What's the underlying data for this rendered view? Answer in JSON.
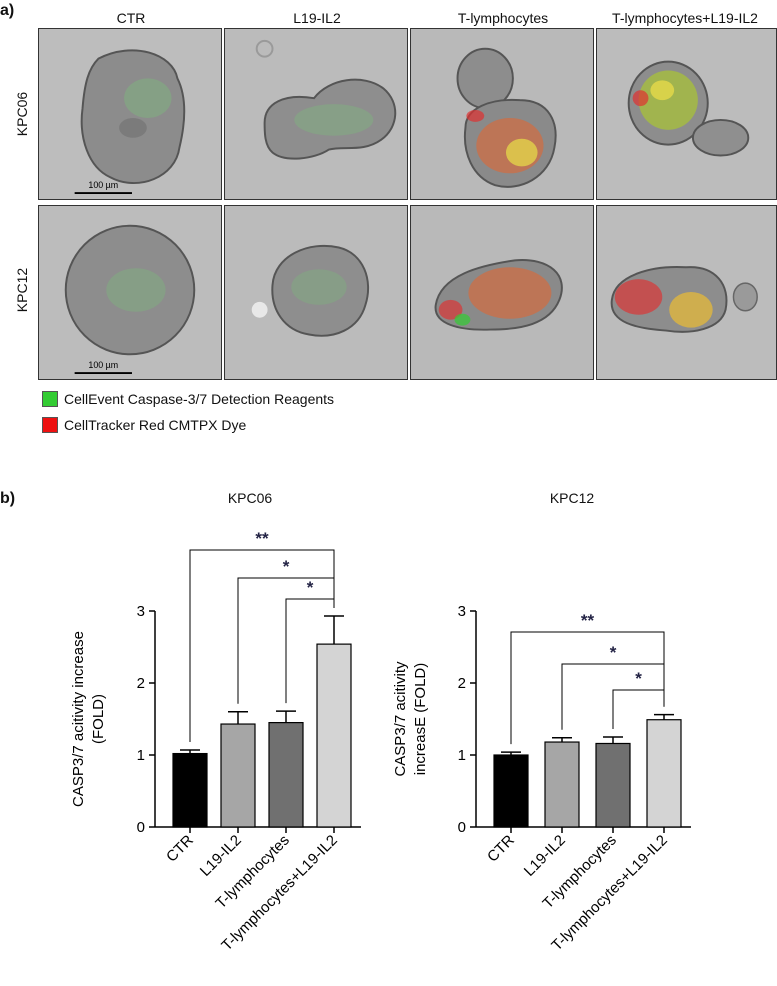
{
  "panel_a": {
    "label": "a)",
    "columns": [
      "CTR",
      "L19-IL2",
      "T-lymphocytes",
      "T-lymphocytes+L19-IL2"
    ],
    "rows": [
      "KPC06",
      "KPC12"
    ],
    "scale_bar": "100 µm",
    "legend": [
      {
        "label": "CellEvent Caspase-3/7 Detection Reagents",
        "color": "#33cc33"
      },
      {
        "label": "CellTracker Red CMTPX Dye",
        "color": "#ee1111"
      }
    ]
  },
  "panel_b": {
    "label": "b)"
  },
  "chart_data": [
    {
      "type": "bar",
      "title": "KPC06",
      "ylabel_lines": [
        "CASP3/7 acitivity increase",
        "(FOLD)"
      ],
      "categories": [
        "CTR",
        "L19-IL2",
        "T-lymphocytes",
        "T-lymphocytes+L19-IL2"
      ],
      "values": [
        1.02,
        1.43,
        1.45,
        2.54
      ],
      "errors": [
        0.05,
        0.17,
        0.16,
        0.39
      ],
      "bar_colors": [
        "#000000",
        "#a6a6a6",
        "#707070",
        "#d4d4d4"
      ],
      "ylim": [
        0,
        3
      ],
      "yticks": [
        0,
        1,
        2,
        3
      ],
      "significance": [
        {
          "from": 0,
          "to": 3,
          "label": "**"
        },
        {
          "from": 1,
          "to": 3,
          "label": "*"
        },
        {
          "from": 2,
          "to": 3,
          "label": "*"
        }
      ]
    },
    {
      "type": "bar",
      "title": "KPC12",
      "ylabel_lines": [
        "CASP3/7 acitivity",
        "increasE (FOLD)"
      ],
      "categories": [
        "CTR",
        "L19-IL2",
        "T-lymphocytes",
        "T-lymphocytes+L19-IL2"
      ],
      "values": [
        1.0,
        1.18,
        1.16,
        1.49
      ],
      "errors": [
        0.04,
        0.06,
        0.09,
        0.07
      ],
      "bar_colors": [
        "#000000",
        "#a6a6a6",
        "#707070",
        "#d4d4d4"
      ],
      "ylim": [
        0,
        3
      ],
      "yticks": [
        0,
        1,
        2,
        3
      ],
      "significance": [
        {
          "from": 0,
          "to": 3,
          "label": "**"
        },
        {
          "from": 1,
          "to": 3,
          "label": "*"
        },
        {
          "from": 2,
          "to": 3,
          "label": "*"
        }
      ]
    }
  ]
}
